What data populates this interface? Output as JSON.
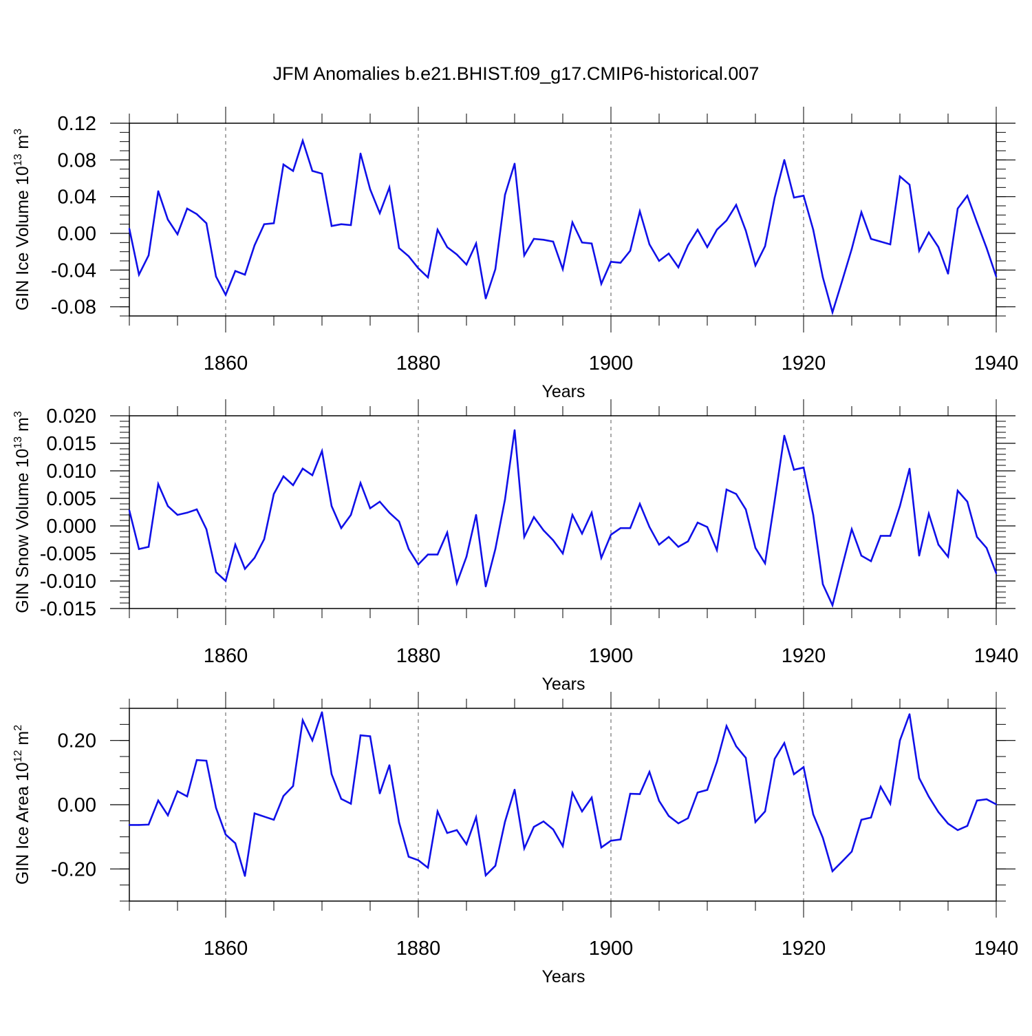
{
  "title": "JFM Anomalies b.e21.BHIST.f09_g17.CMIP6-historical.007",
  "line_color": "#1010e8",
  "chart_data": [
    {
      "type": "line",
      "id": "ice-volume",
      "title": "",
      "xlabel": "Years",
      "ylabel": {
        "main": "GIN Ice Volume 10",
        "sup1": "13",
        "mid": " m",
        "sup2": "3"
      },
      "xlim": [
        1850,
        1940
      ],
      "ylim": [
        -0.09,
        0.12
      ],
      "x_ticks": [
        1860,
        1880,
        1900,
        1920,
        1940
      ],
      "y_ticks": [
        -0.08,
        -0.04,
        0.0,
        0.04,
        0.08,
        0.12
      ],
      "y_tick_labels": [
        "-0.08",
        "-0.04",
        "0.00",
        "0.04",
        "0.08",
        "0.12"
      ],
      "y_minor_step": 0.01,
      "x_start": 1850,
      "values": [
        0.005,
        -0.045,
        -0.024,
        0.046,
        0.015,
        -0.001,
        0.027,
        0.021,
        0.011,
        -0.047,
        -0.067,
        -0.041,
        -0.045,
        -0.013,
        0.01,
        0.011,
        0.075,
        0.068,
        0.101,
        0.068,
        0.065,
        0.008,
        0.01,
        0.009,
        0.087,
        0.048,
        0.022,
        0.05,
        -0.016,
        -0.025,
        -0.038,
        -0.048,
        0.004,
        -0.015,
        -0.023,
        -0.034,
        -0.011,
        -0.071,
        -0.039,
        0.042,
        0.076,
        -0.024,
        -0.006,
        -0.007,
        -0.009,
        -0.039,
        0.012,
        -0.01,
        -0.011,
        -0.055,
        -0.031,
        -0.032,
        -0.019,
        0.024,
        -0.012,
        -0.03,
        -0.022,
        -0.037,
        -0.013,
        0.004,
        -0.015,
        0.004,
        0.014,
        0.031,
        0.003,
        -0.035,
        -0.014,
        0.039,
        0.08,
        0.039,
        0.041,
        0.004,
        -0.048,
        -0.086,
        -0.052,
        -0.017,
        0.023,
        -0.006,
        -0.009,
        -0.012,
        0.062,
        0.053,
        -0.019,
        0.001,
        -0.015,
        -0.044,
        0.027,
        0.041,
        0.012,
        -0.016,
        -0.047
      ]
    },
    {
      "type": "line",
      "id": "snow-volume",
      "title": "",
      "xlabel": "Years",
      "ylabel": {
        "main": "GIN Snow Volume 10",
        "sup1": "13",
        "mid": " m",
        "sup2": "3"
      },
      "xlim": [
        1850,
        1940
      ],
      "ylim": [
        -0.015,
        0.02
      ],
      "x_ticks": [
        1860,
        1880,
        1900,
        1920,
        1940
      ],
      "y_ticks": [
        -0.015,
        -0.01,
        -0.005,
        0.0,
        0.005,
        0.01,
        0.015,
        0.02
      ],
      "y_tick_labels": [
        "-0.015",
        "-0.010",
        "-0.005",
        "0.000",
        "0.005",
        "0.010",
        "0.015",
        "0.020"
      ],
      "y_minor_step": 0.001,
      "x_start": 1850,
      "values": [
        0.0028,
        -0.0042,
        -0.0038,
        0.0076,
        0.0036,
        0.002,
        0.0024,
        0.003,
        -0.0006,
        -0.0084,
        -0.01,
        -0.0034,
        -0.0078,
        -0.0058,
        -0.0024,
        0.0058,
        0.009,
        0.0074,
        0.0104,
        0.0092,
        0.0136,
        0.0036,
        -0.0004,
        0.002,
        0.0078,
        0.0032,
        0.0044,
        0.0024,
        0.0008,
        -0.0042,
        -0.007,
        -0.0052,
        -0.0052,
        -0.0012,
        -0.0104,
        -0.0056,
        0.002,
        -0.011,
        -0.0042,
        0.0048,
        0.0174,
        -0.002,
        0.0016,
        -0.0008,
        -0.0026,
        -0.005,
        0.002,
        -0.0014,
        0.0024,
        -0.0058,
        -0.0016,
        -0.0004,
        -0.0004,
        0.004,
        -0.0002,
        -0.0034,
        -0.002,
        -0.0038,
        -0.0028,
        0.0006,
        -0.0002,
        -0.0044,
        0.0066,
        0.0058,
        0.003,
        -0.004,
        -0.0068,
        0.0046,
        0.0164,
        0.0102,
        0.0106,
        0.002,
        -0.0106,
        -0.0144,
        -0.0074,
        -0.0006,
        -0.0054,
        -0.0064,
        -0.0018,
        -0.0018,
        0.0036,
        0.0104,
        -0.0054,
        0.0022,
        -0.0034,
        -0.0056,
        0.0064,
        0.0044,
        -0.002,
        -0.004,
        -0.0086
      ]
    },
    {
      "type": "line",
      "id": "ice-area",
      "title": "",
      "xlabel": "Years",
      "ylabel": {
        "main": "GIN Ice Area 10",
        "sup1": "12",
        "mid": " m",
        "sup2": "2"
      },
      "xlim": [
        1850,
        1940
      ],
      "ylim": [
        -0.3,
        0.3
      ],
      "x_ticks": [
        1860,
        1880,
        1900,
        1920,
        1940
      ],
      "y_ticks": [
        -0.2,
        0.0,
        0.2
      ],
      "y_tick_labels": [
        "-0.20",
        "0.00",
        "0.20"
      ],
      "y_minor_step": 0.05,
      "x_start": 1850,
      "values": [
        -0.063,
        -0.063,
        -0.062,
        0.013,
        -0.033,
        0.042,
        0.026,
        0.139,
        0.137,
        -0.01,
        -0.093,
        -0.12,
        -0.222,
        -0.027,
        -0.037,
        -0.047,
        0.027,
        0.058,
        0.263,
        0.2,
        0.288,
        0.095,
        0.018,
        0.003,
        0.216,
        0.213,
        0.035,
        0.123,
        -0.055,
        -0.162,
        -0.173,
        -0.196,
        -0.021,
        -0.088,
        -0.079,
        -0.123,
        -0.039,
        -0.22,
        -0.19,
        -0.053,
        0.047,
        -0.136,
        -0.069,
        -0.052,
        -0.077,
        -0.129,
        0.037,
        -0.021,
        0.022,
        -0.133,
        -0.112,
        -0.108,
        0.034,
        0.033,
        0.102,
        0.012,
        -0.035,
        -0.058,
        -0.042,
        0.038,
        0.046,
        0.133,
        0.245,
        0.182,
        0.146,
        -0.054,
        -0.021,
        0.143,
        0.192,
        0.095,
        0.117,
        -0.03,
        -0.103,
        -0.207,
        -0.177,
        -0.146,
        -0.047,
        -0.04,
        0.056,
        0.003,
        0.2,
        0.282,
        0.083,
        0.025,
        -0.023,
        -0.059,
        -0.079,
        -0.066,
        0.013,
        0.017,
        0.001
      ]
    }
  ]
}
